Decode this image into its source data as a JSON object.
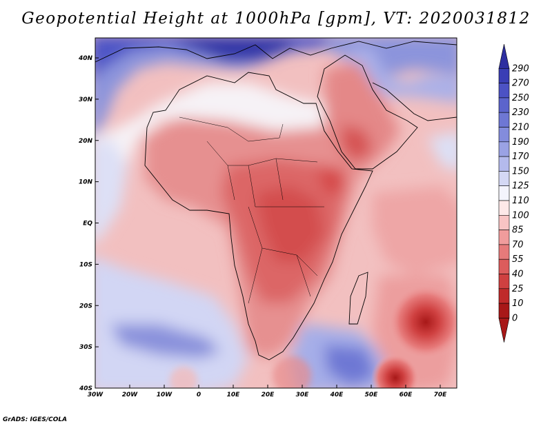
{
  "title": "Geopotential Height at 1000hPa [gpm], VT: 2020031812",
  "credit": "GrADS: IGES/COLA",
  "map": {
    "lon_range": [
      -30,
      75
    ],
    "lat_range": [
      -40,
      45
    ],
    "lat_labels": [
      "40N",
      "30N",
      "20N",
      "10N",
      "EQ",
      "10S",
      "20S",
      "30S",
      "40S"
    ],
    "lon_labels": [
      "30W",
      "20W",
      "10W",
      "0",
      "10E",
      "20E",
      "30E",
      "40E",
      "50E",
      "60E",
      "70E"
    ]
  },
  "colorbar": {
    "levels": [
      "290",
      "270",
      "250",
      "230",
      "210",
      "190",
      "170",
      "150",
      "125",
      "110",
      "100",
      "85",
      "70",
      "55",
      "40",
      "25",
      "10",
      "0"
    ],
    "colors": [
      "#2e2fa0",
      "#3a3eb5",
      "#4c52c4",
      "#5c64cc",
      "#6e77d4",
      "#838cdc",
      "#9aa2e4",
      "#b4baec",
      "#d4d8f4",
      "#f4f4fc",
      "#fde8e8",
      "#f8c4c4",
      "#f09c9c",
      "#e67a7a",
      "#dc5c5c",
      "#cf4040",
      "#bf2a2a",
      "#a81818",
      "#a81818"
    ]
  }
}
